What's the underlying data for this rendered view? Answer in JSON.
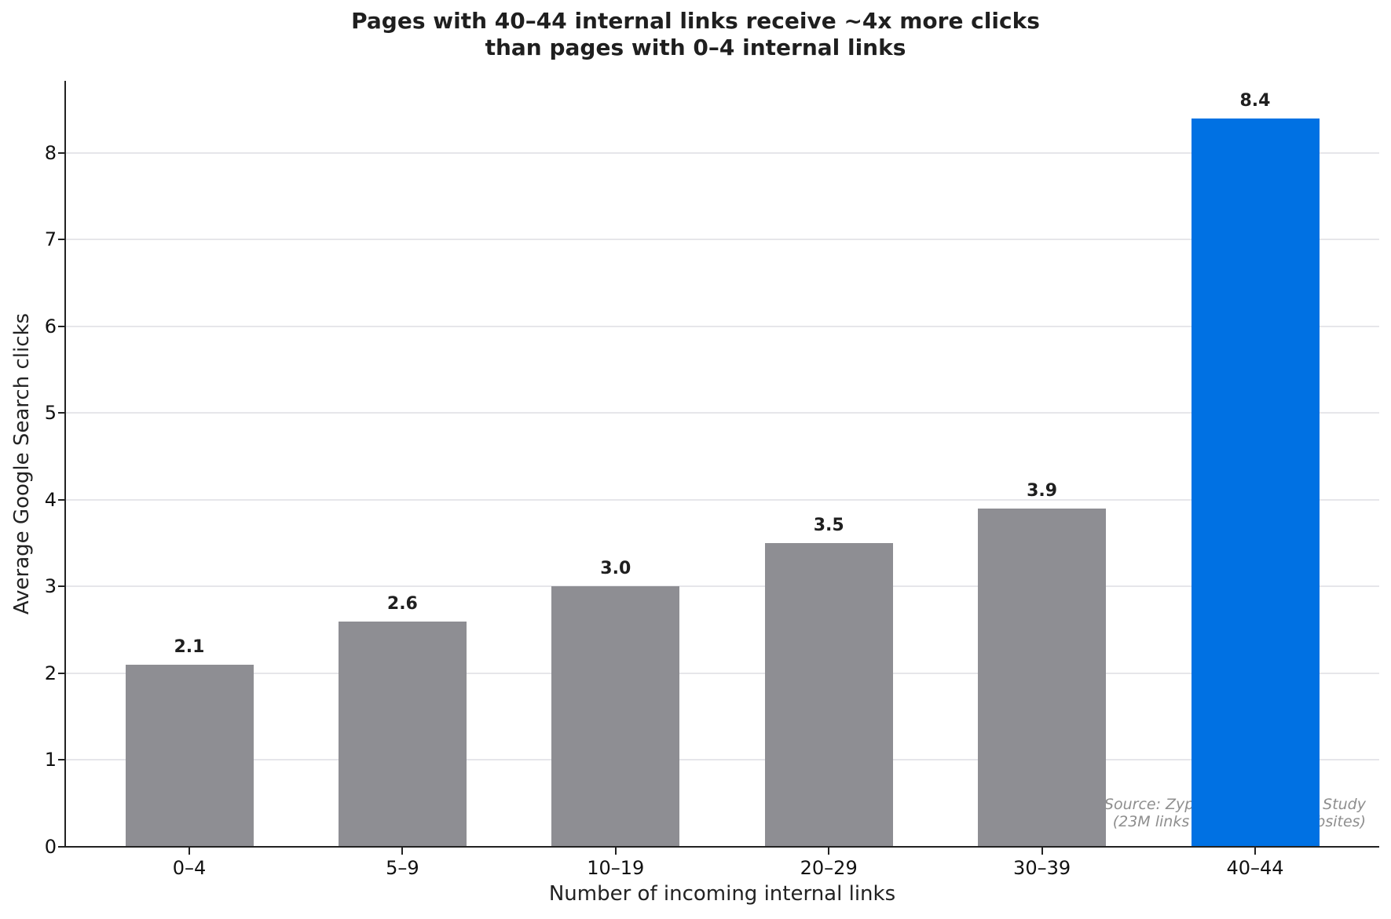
{
  "chart_data": {
    "type": "bar",
    "title": "Pages with 40–44 internal links receive ~4x more clicks than pages with 0–4 internal links",
    "title_lines": [
      "Pages with 40–44 internal links receive ~4x more clicks",
      "than pages with 0–4 internal links"
    ],
    "xlabel": "Number of incoming internal links",
    "ylabel": "Average Google Search clicks",
    "categories": [
      "0–4",
      "5–9",
      "10–19",
      "20–29",
      "30–39",
      "40–44"
    ],
    "values": [
      2.1,
      2.6,
      3.0,
      3.5,
      3.9,
      8.4
    ],
    "value_labels": [
      "2.1",
      "2.6",
      "3.0",
      "3.5",
      "3.9",
      "8.4"
    ],
    "colors": [
      "#8e8e93",
      "#8e8e93",
      "#8e8e93",
      "#8e8e93",
      "#8e8e93",
      "#0071e3"
    ],
    "highlight_color": "#0071e3",
    "base_color": "#8e8e93",
    "ylim": [
      0,
      8.83
    ],
    "yticks": [
      0,
      1,
      2,
      3,
      4,
      5,
      6,
      7,
      8
    ],
    "ytick_labels": [
      "0",
      "1",
      "2",
      "3",
      "4",
      "5",
      "6",
      "7",
      "8"
    ],
    "grid": {
      "y": true,
      "x": false,
      "color": "#e6e6ea"
    },
    "legend": null,
    "annotation": {
      "line1": "Source: Zyppy Internal Links Study",
      "line2": "(23M links across 1,800 websites)",
      "position": "bottom-right"
    }
  }
}
